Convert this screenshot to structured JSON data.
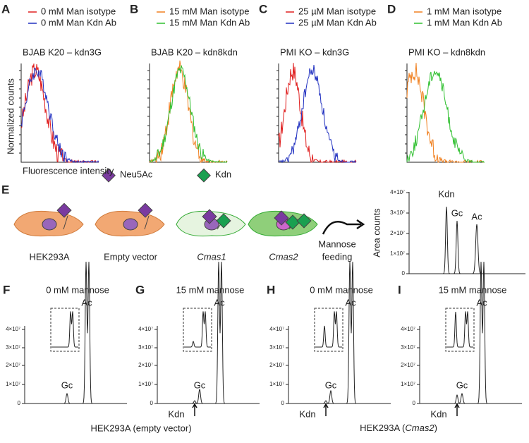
{
  "flow_panels": [
    {
      "letter": "A",
      "legend": [
        "0  mM Man isotype",
        "0  mM Man Kdn Ab"
      ],
      "title": "BJAB K20 – kdn3G"
    },
    {
      "letter": "B",
      "legend": [
        "15 mM Man isotype",
        "15 mM Man Kdn Ab"
      ],
      "title": "BJAB K20 – kdn8kdn"
    },
    {
      "letter": "C",
      "legend": [
        "25 µM Man isotype",
        "25 µM Man Kdn Ab"
      ],
      "title": "PMI KO – kdn3G"
    },
    {
      "letter": "D",
      "legend": [
        "1 mM Man isotype",
        "1 mM Man Kdn Ab"
      ],
      "title": "PMI KO – kdn8kdn"
    }
  ],
  "flow_axes": {
    "y_label": "Normalized counts",
    "x_label": "Fluorescence intensity"
  },
  "panel_e": {
    "letter": "E",
    "legend": [
      "Neu5Ac",
      "Kdn"
    ],
    "cells": [
      "HEK293A",
      "Empty vector",
      "Cmas1",
      "Cmas2"
    ],
    "arrow_label": [
      "Mannose",
      "feeding"
    ],
    "y_label": "Area counts",
    "yticks": [
      "0",
      "1×10⁷",
      "2×10⁷",
      "3×10⁷",
      "4×10⁷"
    ],
    "peaks": [
      "Kdn",
      "Gc",
      "Ac"
    ]
  },
  "hplc_panels": [
    {
      "letter": "F",
      "title": "0 mM mannose",
      "yticks": [
        "0",
        "1×10⁷",
        "2×10⁷",
        "3×10⁷",
        "4×10⁷"
      ],
      "peaks": [
        "Gc",
        "Ac"
      ]
    },
    {
      "letter": "G",
      "title": "15 mM mannose",
      "yticks": [
        "0",
        "1×10⁷",
        "2×10⁷",
        "3×10⁷",
        "4×10⁷"
      ],
      "peaks": [
        "Gc",
        "Ac",
        "Kdn"
      ]
    },
    {
      "letter": "H",
      "title": "0 mM mannose",
      "yticks": [
        "0",
        "1×10⁷",
        "2×10⁷",
        "3×10⁷",
        "4×10⁷"
      ],
      "peaks": [
        "Gc",
        "Ac",
        "Kdn"
      ]
    },
    {
      "letter": "I",
      "title": "15 mM mannose",
      "yticks": [
        "0",
        "1×10⁷",
        "2×10⁷",
        "3×10⁷",
        "4×10⁷"
      ],
      "peaks": [
        "Gc",
        "Ac",
        "Kdn"
      ]
    }
  ],
  "captions": [
    {
      "text": "HEK293A (empty vector)"
    },
    {
      "prefix": "HEK293A (",
      "gene": "Cmas2",
      "suffix": ")"
    }
  ]
}
